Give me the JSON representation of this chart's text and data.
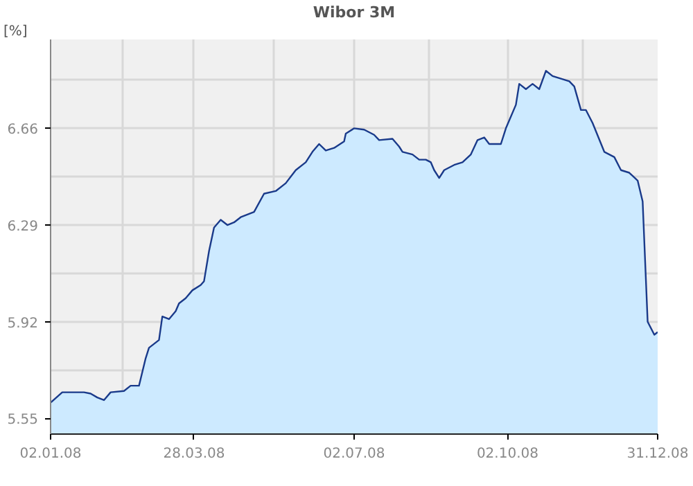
{
  "chart_data": {
    "type": "area",
    "title": "Wibor 3M",
    "ylabel": "[%]",
    "x": [
      "2008-01-02",
      "2008-01-09",
      "2008-01-22",
      "2008-01-26",
      "2008-01-30",
      "2008-02-03",
      "2008-02-07",
      "2008-02-15",
      "2008-02-19",
      "2008-02-24",
      "2008-02-28",
      "2008-03-01",
      "2008-03-07",
      "2008-03-09",
      "2008-03-13",
      "2008-03-17",
      "2008-03-19",
      "2008-03-23",
      "2008-03-27",
      "2008-04-01",
      "2008-04-03",
      "2008-04-06",
      "2008-04-09",
      "2008-04-13",
      "2008-04-17",
      "2008-04-21",
      "2008-04-25",
      "2008-05-03",
      "2008-05-09",
      "2008-05-16",
      "2008-05-22",
      "2008-05-28",
      "2008-06-03",
      "2008-06-07",
      "2008-06-11",
      "2008-06-15",
      "2008-06-20",
      "2008-06-26",
      "2008-06-27",
      "2008-07-02",
      "2008-07-08",
      "2008-07-14",
      "2008-07-17",
      "2008-07-25",
      "2008-07-29",
      "2008-07-31",
      "2008-08-06",
      "2008-08-10",
      "2008-08-14",
      "2008-08-17",
      "2008-08-19",
      "2008-08-22",
      "2008-08-25",
      "2008-08-31",
      "2008-09-05",
      "2008-09-10",
      "2008-09-14",
      "2008-09-18",
      "2008-09-21",
      "2008-09-28",
      "2008-10-01",
      "2008-10-07",
      "2008-10-09",
      "2008-10-13",
      "2008-10-17",
      "2008-10-21",
      "2008-10-25",
      "2008-10-29",
      "2008-11-03",
      "2008-11-08",
      "2008-11-11",
      "2008-11-15",
      "2008-11-18",
      "2008-11-22",
      "2008-11-29",
      "2008-12-05",
      "2008-12-09",
      "2008-12-14",
      "2008-12-19",
      "2008-12-22",
      "2008-12-25",
      "2008-12-29",
      "2008-12-31"
    ],
    "series": [
      {
        "color": "#1a3a8a",
        "values": [
          5.61,
          5.65,
          5.65,
          5.645,
          5.63,
          5.62,
          5.65,
          5.655,
          5.675,
          5.675,
          5.78,
          5.82,
          5.85,
          5.94,
          5.93,
          5.96,
          5.99,
          6.01,
          6.04,
          6.06,
          6.075,
          6.19,
          6.28,
          6.31,
          6.29,
          6.3,
          6.32,
          6.34,
          6.41,
          6.42,
          6.45,
          6.5,
          6.53,
          6.57,
          6.6,
          6.575,
          6.585,
          6.61,
          6.64,
          6.66,
          6.655,
          6.635,
          6.615,
          6.62,
          6.59,
          6.57,
          6.56,
          6.54,
          6.54,
          6.53,
          6.5,
          6.47,
          6.5,
          6.52,
          6.53,
          6.56,
          6.615,
          6.625,
          6.6,
          6.6,
          6.66,
          6.75,
          6.83,
          6.81,
          6.83,
          6.81,
          6.88,
          6.86,
          6.85,
          6.84,
          6.82,
          6.73,
          6.73,
          6.68,
          6.57,
          6.55,
          6.5,
          6.49,
          6.46,
          6.38,
          5.92,
          5.87,
          5.88
        ]
      }
    ],
    "xlim": [
      "2008-01-02",
      "2008-12-31"
    ],
    "xticks": [
      {
        "value": "2008-01-02",
        "label": "02.01.08"
      },
      {
        "value": "2008-02-14",
        "label": null
      },
      {
        "value": "2008-03-28",
        "label": "28.03.08"
      },
      {
        "value": "2008-05-15",
        "label": null
      },
      {
        "value": "2008-07-02",
        "label": "02.07.08"
      },
      {
        "value": "2008-08-16",
        "label": null
      },
      {
        "value": "2008-10-02",
        "label": "02.10.08"
      },
      {
        "value": "2008-11-16",
        "label": null
      },
      {
        "value": "2008-12-31",
        "label": "31.12.08"
      }
    ],
    "ylim": [
      5.49,
      7.0
    ],
    "yticks": [
      5.55,
      {
        "value": 5.735,
        "label": null
      },
      5.92,
      {
        "value": 6.105,
        "label": null
      },
      6.29,
      {
        "value": 6.475,
        "label": null
      },
      6.66,
      {
        "value": 6.845,
        "label": null
      }
    ],
    "grid": true
  }
}
